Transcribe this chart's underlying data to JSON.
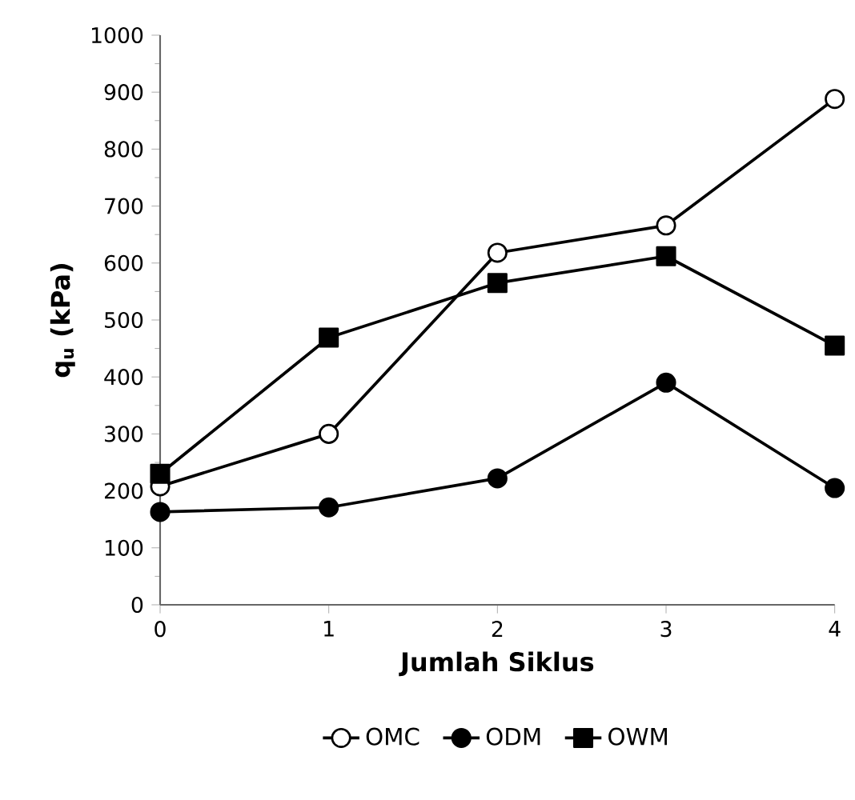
{
  "chart_data": {
    "type": "line",
    "xlabel": "Jumlah Siklus",
    "ylabel": "q$_{u}$ (kPa)",
    "x": [
      0,
      1,
      2,
      3,
      4
    ],
    "series": [
      {
        "name": "OMC",
        "color": "#000000",
        "marker": "circle",
        "colors": [
          "#ffffff",
          "#ffffff",
          "#ffffff",
          "#ffffff",
          "#ffffff"
        ],
        "values": [
          208,
          300,
          618,
          666,
          888
        ]
      },
      {
        "name": "ODM",
        "color": "#000000",
        "marker": "circle",
        "values": [
          163,
          171,
          222,
          390,
          205
        ]
      },
      {
        "name": "OWM",
        "color": "#000000",
        "marker": "square",
        "values": [
          230,
          469,
          565,
          612,
          455
        ]
      }
    ],
    "xlim": [
      0,
      4
    ],
    "xticks": [
      0,
      1,
      2,
      3,
      4
    ],
    "ylim": [
      0,
      1000
    ],
    "yticks": [
      0,
      100,
      200,
      300,
      400,
      500,
      600,
      700,
      800,
      900,
      1000
    ],
    "grid": false,
    "legend": "bottom",
    "line_style": "solid"
  }
}
